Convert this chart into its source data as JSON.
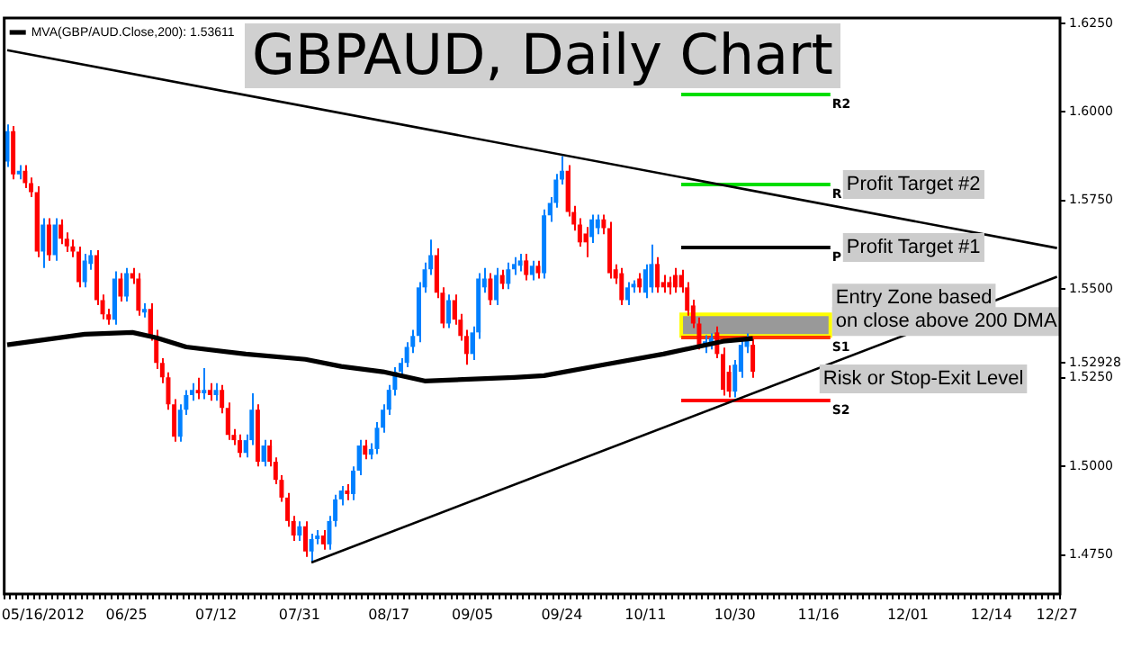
{
  "chart_data": {
    "type": "candlestick",
    "title": "GBPAUD, Daily Chart",
    "categories": [
      null,
      null,
      null,
      null,
      null,
      null,
      "05/16/2012",
      null,
      null,
      null,
      null,
      null,
      null,
      null,
      null,
      null,
      null,
      null,
      null,
      null,
      "06/25",
      null,
      null,
      null,
      null,
      null,
      null,
      null,
      null,
      null,
      null,
      null,
      null,
      null,
      null,
      "07/12",
      null,
      null,
      null,
      null,
      null,
      null,
      null,
      null,
      null,
      null,
      null,
      null,
      null,
      "07/31",
      null,
      null,
      null,
      null,
      null,
      null,
      null,
      null,
      null,
      null,
      null,
      null,
      null,
      null,
      "08/17",
      null,
      null,
      null,
      null,
      null,
      null,
      null,
      null,
      null,
      null,
      null,
      null,
      null,
      "09/05",
      null,
      null,
      null,
      null,
      null,
      null,
      null,
      null,
      null,
      null,
      null,
      null,
      null,
      null,
      "09/24",
      null,
      null,
      null,
      null,
      null,
      null,
      null,
      null,
      null,
      null,
      null,
      null,
      null,
      "10/11",
      null,
      null,
      null,
      null,
      null,
      null,
      null,
      null,
      null,
      null,
      null,
      null,
      null,
      null,
      "10/30",
      null,
      null,
      null,
      null,
      null,
      null,
      null,
      null,
      null,
      null,
      null,
      null,
      null,
      "11/16",
      null,
      null,
      null,
      null,
      null,
      null,
      null,
      null,
      null,
      null,
      null,
      null,
      null,
      null,
      "12/01",
      null,
      null,
      null,
      null,
      null,
      null,
      null,
      null,
      null,
      null,
      null,
      null,
      null,
      "12/14",
      null,
      null,
      null,
      null,
      null,
      null,
      null,
      null,
      null,
      null,
      "12/27"
    ],
    "ohlc": [
      [
        1.586,
        1.5965,
        1.5845,
        1.5946
      ],
      [
        1.5946,
        1.596,
        1.581,
        1.5824
      ],
      [
        1.5824,
        1.585,
        1.581,
        1.5834
      ],
      [
        1.5834,
        1.585,
        1.5785,
        1.5799
      ],
      [
        1.5799,
        1.5815,
        1.576,
        1.5774
      ],
      [
        1.5774,
        1.579,
        1.559,
        1.5606
      ],
      [
        1.5606,
        1.57,
        1.556,
        1.5682
      ],
      [
        1.5682,
        1.57,
        1.558,
        1.5596
      ],
      [
        1.5596,
        1.57,
        1.558,
        1.5682
      ],
      [
        1.5682,
        1.5697,
        1.5627,
        1.5642
      ],
      [
        1.5642,
        1.566,
        1.5605,
        1.5621
      ],
      [
        1.5621,
        1.564,
        1.559,
        1.5606
      ],
      [
        1.5606,
        1.562,
        1.5505,
        1.552
      ],
      [
        1.552,
        1.56,
        1.5505,
        1.5581
      ],
      [
        1.5571,
        1.561,
        1.5555,
        1.5596
      ],
      [
        1.5596,
        1.561,
        1.5455,
        1.5469
      ],
      [
        1.5469,
        1.5485,
        1.5415,
        1.5429
      ],
      [
        1.5429,
        1.5445,
        1.54,
        1.5414
      ],
      [
        1.5414,
        1.555,
        1.54,
        1.553
      ],
      [
        1.553,
        1.5545,
        1.5465,
        1.5479
      ],
      [
        1.5479,
        1.556,
        1.5465,
        1.5545
      ],
      [
        1.5545,
        1.556,
        1.5515,
        1.553
      ],
      [
        1.553,
        1.5545,
        1.5425,
        1.5439
      ],
      [
        1.5434,
        1.546,
        1.542,
        1.5444
      ],
      [
        1.5444,
        1.546,
        1.5355,
        1.5368
      ],
      [
        1.5368,
        1.5385,
        1.5275,
        1.5292
      ],
      [
        1.5292,
        1.5305,
        1.5235,
        1.5251
      ],
      [
        1.5251,
        1.5265,
        1.516,
        1.5175
      ],
      [
        1.5175,
        1.519,
        1.507,
        1.5084
      ],
      [
        1.5084,
        1.5175,
        1.507,
        1.516
      ],
      [
        1.516,
        1.5215,
        1.5145,
        1.5201
      ],
      [
        1.5201,
        1.5235,
        1.5185,
        1.5216
      ],
      [
        1.5216,
        1.525,
        1.519,
        1.5206
      ],
      [
        1.5206,
        1.5277,
        1.519,
        1.5216
      ],
      [
        1.5216,
        1.5235,
        1.5185,
        1.5201
      ],
      [
        1.5201,
        1.5235,
        1.5185,
        1.5216
      ],
      [
        1.5216,
        1.523,
        1.515,
        1.5165
      ],
      [
        1.5165,
        1.518,
        1.5075,
        1.5089
      ],
      [
        1.5089,
        1.5105,
        1.506,
        1.5074
      ],
      [
        1.5074,
        1.509,
        1.5025,
        1.5038
      ],
      [
        1.5038,
        1.509,
        1.5025,
        1.5074
      ],
      [
        1.5074,
        1.5206,
        1.506,
        1.516
      ],
      [
        1.516,
        1.5175,
        1.5,
        1.5013
      ],
      [
        1.5013,
        1.5075,
        1.5,
        1.5059
      ],
      [
        1.5059,
        1.5075,
        1.5,
        1.5013
      ],
      [
        1.5013,
        1.5025,
        1.495,
        1.4962
      ],
      [
        1.4962,
        1.4975,
        1.49,
        1.4912
      ],
      [
        1.4912,
        1.4925,
        1.483,
        1.4846
      ],
      [
        1.4846,
        1.486,
        1.479,
        1.4805
      ],
      [
        1.4805,
        1.4845,
        1.479,
        1.4831
      ],
      [
        1.4831,
        1.4845,
        1.4745,
        1.476
      ],
      [
        1.476,
        1.481,
        1.4729,
        1.4795
      ],
      [
        1.4795,
        1.482,
        1.478,
        1.4805
      ],
      [
        1.4805,
        1.482,
        1.4765,
        1.478
      ],
      [
        1.478,
        1.486,
        1.4765,
        1.4846
      ],
      [
        1.4846,
        1.492,
        1.483,
        1.4907
      ],
      [
        1.4907,
        1.4945,
        1.489,
        1.4932
      ],
      [
        1.4932,
        1.495,
        1.4905,
        1.4922
      ],
      [
        1.4922,
        1.5,
        1.4905,
        1.4988
      ],
      [
        1.4988,
        1.5075,
        1.4975,
        1.5059
      ],
      [
        1.5059,
        1.5075,
        1.502,
        1.5033
      ],
      [
        1.5033,
        1.5065,
        1.502,
        1.5049
      ],
      [
        1.5049,
        1.5125,
        1.5035,
        1.5109
      ],
      [
        1.5109,
        1.5175,
        1.5095,
        1.516
      ],
      [
        1.516,
        1.523,
        1.5145,
        1.5216
      ],
      [
        1.5216,
        1.528,
        1.52,
        1.5267
      ],
      [
        1.5267,
        1.5305,
        1.525,
        1.5292
      ],
      [
        1.5292,
        1.535,
        1.528,
        1.5337
      ],
      [
        1.5337,
        1.5385,
        1.532,
        1.5368
      ],
      [
        1.5368,
        1.552,
        1.535,
        1.5505
      ],
      [
        1.5505,
        1.5575,
        1.549,
        1.5556
      ],
      [
        1.5556,
        1.564,
        1.554,
        1.5596
      ],
      [
        1.5596,
        1.5615,
        1.5475,
        1.549
      ],
      [
        1.549,
        1.5505,
        1.539,
        1.5403
      ],
      [
        1.5403,
        1.5485,
        1.539,
        1.5469
      ],
      [
        1.5469,
        1.5485,
        1.54,
        1.5414
      ],
      [
        1.5414,
        1.543,
        1.5355,
        1.5368
      ],
      [
        1.5368,
        1.5385,
        1.5287,
        1.5317
      ],
      [
        1.5317,
        1.5395,
        1.53,
        1.5378
      ],
      [
        1.5378,
        1.5545,
        1.536,
        1.553
      ],
      [
        1.5505,
        1.556,
        1.549,
        1.553
      ],
      [
        1.553,
        1.5545,
        1.5455,
        1.5469
      ],
      [
        1.5469,
        1.556,
        1.5455,
        1.554
      ],
      [
        1.554,
        1.5555,
        1.55,
        1.5515
      ],
      [
        1.5515,
        1.5575,
        1.55,
        1.5556
      ],
      [
        1.5556,
        1.559,
        1.554,
        1.5571
      ],
      [
        1.5566,
        1.56,
        1.555,
        1.5581
      ],
      [
        1.5581,
        1.56,
        1.5525,
        1.554
      ],
      [
        1.554,
        1.558,
        1.5525,
        1.5566
      ],
      [
        1.5566,
        1.558,
        1.553,
        1.5545
      ],
      [
        1.5545,
        1.5725,
        1.553,
        1.5708
      ],
      [
        1.5708,
        1.576,
        1.569,
        1.5743
      ],
      [
        1.5743,
        1.5825,
        1.573,
        1.5809
      ],
      [
        1.5809,
        1.5875,
        1.5795,
        1.5834
      ],
      [
        1.5834,
        1.585,
        1.5705,
        1.5718
      ],
      [
        1.5718,
        1.5735,
        1.5665,
        1.5682
      ],
      [
        1.5682,
        1.57,
        1.562,
        1.5632
      ],
      [
        1.5657,
        1.5675,
        1.559,
        1.5632
      ],
      [
        1.5647,
        1.571,
        1.563,
        1.5697
      ],
      [
        1.5672,
        1.571,
        1.5655,
        1.5697
      ],
      [
        1.5697,
        1.571,
        1.5655,
        1.5672
      ],
      [
        1.5672,
        1.569,
        1.553,
        1.5545
      ],
      [
        1.5556,
        1.557,
        1.5515,
        1.553
      ],
      [
        1.5545,
        1.556,
        1.5455,
        1.5469
      ],
      [
        1.5469,
        1.552,
        1.5455,
        1.5505
      ],
      [
        1.5505,
        1.5525,
        1.549,
        1.5515
      ],
      [
        1.553,
        1.5545,
        1.549,
        1.5505
      ],
      [
        1.549,
        1.557,
        1.5475,
        1.5556
      ],
      [
        1.5505,
        1.5626,
        1.549,
        1.5571
      ],
      [
        1.5571,
        1.559,
        1.549,
        1.5505
      ],
      [
        1.552,
        1.554,
        1.549,
        1.5505
      ],
      [
        1.552,
        1.5535,
        1.5485,
        1.5505
      ],
      [
        1.554,
        1.556,
        1.549,
        1.5505
      ],
      [
        1.554,
        1.5555,
        1.549,
        1.5505
      ],
      [
        1.5505,
        1.552,
        1.5425,
        1.5439
      ],
      [
        1.5454,
        1.547,
        1.539,
        1.5403
      ],
      [
        1.5403,
        1.542,
        1.533,
        1.5343
      ],
      [
        1.5337,
        1.537,
        1.532,
        1.5353
      ],
      [
        1.5343,
        1.5375,
        1.533,
        1.5363
      ],
      [
        1.5378,
        1.5395,
        1.5305,
        1.5317
      ],
      [
        1.5317,
        1.5335,
        1.52,
        1.5216
      ],
      [
        1.5267,
        1.5285,
        1.5195,
        1.5211
      ],
      [
        1.5211,
        1.53,
        1.5195,
        1.5287
      ],
      [
        1.5267,
        1.536,
        1.525,
        1.5343
      ],
      [
        1.5337,
        1.5375,
        1.532,
        1.5363
      ],
      [
        1.5343,
        1.536,
        1.525,
        1.5267
      ],
      null,
      null,
      null,
      null,
      null,
      null,
      null,
      null,
      null,
      null,
      null,
      null,
      null,
      null,
      null,
      null,
      null,
      null,
      null,
      null,
      null,
      null,
      null,
      null,
      null,
      null,
      null,
      null,
      null,
      null,
      null,
      null,
      null,
      null,
      null,
      null,
      null,
      null,
      null,
      null,
      null,
      null,
      null,
      null,
      null,
      null,
      null,
      null,
      null,
      null,
      null
    ],
    "colors": [
      "#0080ff",
      "#ff0000",
      "#0080ff",
      "#ff0000",
      "#ff0000",
      "#ff0000",
      "#0080ff",
      "#ff0000",
      "#0080ff",
      "#ff0000",
      "#ff0000",
      "#ff0000",
      "#ff0000",
      "#0080ff",
      "#0080ff",
      "#ff0000",
      "#ff0000",
      "#ff0000",
      "#0080ff",
      "#ff0000",
      "#0080ff",
      "#ff0000",
      "#ff0000",
      "#0080ff",
      "#ff0000",
      "#ff0000",
      "#ff0000",
      "#ff0000",
      "#ff0000",
      "#0080ff",
      "#0080ff",
      "#0080ff",
      "#ff0000",
      "#0080ff",
      "#ff0000",
      "#0080ff",
      "#ff0000",
      "#ff0000",
      "#ff0000",
      "#ff0000",
      "#0080ff",
      "#0080ff",
      "#ff0000",
      "#0080ff",
      "#ff0000",
      "#ff0000",
      "#ff0000",
      "#ff0000",
      "#ff0000",
      "#0080ff",
      "#ff0000",
      "#0080ff",
      "#0080ff",
      "#ff0000",
      "#0080ff",
      "#0080ff",
      "#0080ff",
      "#ff0000",
      "#0080ff",
      "#0080ff",
      "#ff0000",
      "#0080ff",
      "#0080ff",
      "#0080ff",
      "#0080ff",
      "#0080ff",
      "#0080ff",
      "#0080ff",
      "#0080ff",
      "#0080ff",
      "#0080ff",
      "#0080ff",
      "#ff0000",
      "#ff0000",
      "#0080ff",
      "#ff0000",
      "#ff0000",
      "#ff0000",
      "#0080ff",
      "#0080ff",
      "#0080ff",
      "#ff0000",
      "#0080ff",
      "#ff0000",
      "#0080ff",
      "#0080ff",
      "#0080ff",
      "#ff0000",
      "#0080ff",
      "#ff0000",
      "#0080ff",
      "#0080ff",
      "#0080ff",
      "#0080ff",
      "#ff0000",
      "#ff0000",
      "#ff0000",
      "#ff0000",
      "#0080ff",
      "#0080ff",
      "#ff0000",
      "#ff0000",
      "#ff0000",
      "#ff0000",
      "#0080ff",
      "#0080ff",
      "#ff0000",
      "#0080ff",
      "#0080ff",
      "#ff0000",
      "#ff0000",
      "#ff0000",
      "#ff0000",
      "#ff0000",
      "#ff0000",
      "#ff0000",
      "#ff0000",
      "#0080ff",
      "#0080ff",
      "#ff0000",
      "#ff0000",
      "#ff0000",
      "#0080ff",
      "#0080ff",
      "#0080ff",
      "#ff0000",
      null,
      null,
      null,
      null,
      null,
      null,
      null,
      null,
      null,
      null,
      null,
      null,
      null,
      null,
      null,
      null,
      null,
      null,
      null,
      null,
      null,
      null,
      null,
      null,
      null,
      null,
      null,
      null,
      null,
      null,
      null,
      null,
      null,
      null,
      null,
      null,
      null,
      null,
      null,
      null,
      null,
      null,
      null,
      null,
      null,
      null,
      null,
      null,
      null,
      null,
      null
    ],
    "series": [
      {
        "type": "line",
        "name": "MVA(GBP/AUD.Close,200): 1.53611",
        "color": "#000000",
        "values": [
          1.5343,
          null,
          null,
          null,
          null,
          null,
          null,
          null,
          null,
          null,
          null,
          null,
          null,
          1.5373,
          null,
          null,
          null,
          null,
          null,
          null,
          null,
          1.5378,
          null,
          null,
          null,
          1.5363,
          null,
          null,
          null,
          null,
          1.5337,
          null,
          null,
          null,
          null,
          null,
          null,
          null,
          null,
          null,
          1.5317,
          null,
          null,
          null,
          null,
          null,
          null,
          null,
          null,
          null,
          1.5302,
          null,
          null,
          null,
          null,
          null,
          1.5282,
          null,
          null,
          null,
          null,
          null,
          null,
          1.5267,
          null,
          null,
          null,
          null,
          null,
          null,
          1.5241,
          null,
          null,
          null,
          null,
          null,
          null,
          null,
          null,
          null,
          null,
          null,
          null,
          null,
          null,
          1.5251,
          null,
          null,
          null,
          null,
          1.5256,
          null,
          null,
          null,
          null,
          null,
          null,
          null,
          null,
          null,
          1.5287,
          null,
          null,
          null,
          null,
          null,
          null,
          null,
          null,
          null,
          1.5317,
          null,
          null,
          null,
          null,
          null,
          null,
          null,
          null,
          null,
          1.5353,
          null,
          null,
          null,
          null,
          1.5361,
          null,
          null,
          null,
          null,
          null,
          null,
          null,
          null,
          null,
          null,
          null,
          null,
          null,
          null,
          null,
          null,
          null,
          null,
          null,
          null,
          null,
          null,
          null,
          null,
          null,
          null,
          null,
          null,
          null,
          null,
          null,
          null,
          null,
          null,
          null,
          null,
          null,
          null,
          null,
          null,
          null,
          null,
          null,
          null,
          null,
          null,
          null,
          null,
          null,
          null,
          null
        ]
      },
      {
        "type": "line",
        "color": "#000000",
        "values": [
          1.6174,
          null,
          null,
          null,
          null,
          null,
          null,
          null,
          null,
          null,
          null,
          null,
          null,
          null,
          null,
          null,
          null,
          null,
          null,
          null,
          null,
          null,
          null,
          null,
          null,
          null,
          null,
          null,
          null,
          null,
          null,
          null,
          null,
          null,
          null,
          null,
          null,
          null,
          null,
          null,
          null,
          null,
          null,
          null,
          null,
          null,
          null,
          null,
          null,
          null,
          null,
          null,
          null,
          null,
          null,
          null,
          null,
          null,
          null,
          null,
          null,
          null,
          null,
          null,
          null,
          null,
          null,
          null,
          null,
          null,
          null,
          null,
          null,
          null,
          null,
          null,
          null,
          null,
          null,
          null,
          null,
          null,
          null,
          null,
          null,
          null,
          null,
          null,
          null,
          null,
          null,
          null,
          null,
          null,
          null,
          null,
          null,
          null,
          null,
          null,
          null,
          null,
          null,
          null,
          null,
          null,
          null,
          null,
          null,
          null,
          null,
          null,
          null,
          null,
          null,
          null,
          null,
          null,
          null,
          null,
          null,
          null,
          null,
          null,
          null,
          null,
          null,
          null,
          null,
          null,
          null,
          null,
          null,
          null,
          null,
          null,
          null,
          null,
          null,
          null,
          null,
          null,
          null,
          null,
          null,
          null,
          null,
          null,
          null,
          null,
          null,
          null,
          null,
          null,
          null,
          null,
          null,
          null,
          null,
          null,
          null,
          null,
          null,
          null,
          null,
          null,
          null,
          null,
          null,
          null,
          null,
          null,
          null,
          null,
          null,
          null,
          1.5616
        ]
      },
      {
        "type": "line",
        "color": "#000000",
        "values": [
          null,
          null,
          null,
          null,
          null,
          null,
          null,
          null,
          null,
          null,
          null,
          null,
          null,
          null,
          null,
          null,
          null,
          null,
          null,
          null,
          null,
          null,
          null,
          null,
          null,
          null,
          null,
          null,
          null,
          null,
          null,
          null,
          null,
          null,
          null,
          null,
          null,
          null,
          null,
          null,
          null,
          null,
          null,
          null,
          null,
          null,
          null,
          null,
          null,
          null,
          null,
          1.4729,
          null,
          null,
          null,
          null,
          null,
          null,
          null,
          null,
          null,
          null,
          null,
          null,
          null,
          null,
          null,
          null,
          null,
          null,
          null,
          null,
          null,
          null,
          null,
          null,
          null,
          null,
          null,
          null,
          null,
          null,
          null,
          null,
          null,
          null,
          null,
          null,
          null,
          null,
          null,
          null,
          null,
          null,
          null,
          null,
          null,
          null,
          null,
          null,
          null,
          null,
          null,
          null,
          null,
          null,
          null,
          null,
          null,
          null,
          null,
          null,
          null,
          null,
          null,
          null,
          null,
          null,
          null,
          null,
          null,
          null,
          null,
          null,
          null,
          null,
          null,
          null,
          null,
          null,
          null,
          null,
          null,
          null,
          null,
          null,
          null,
          null,
          null,
          null,
          null,
          null,
          null,
          null,
          null,
          null,
          null,
          null,
          null,
          null,
          null,
          null,
          null,
          null,
          null,
          null,
          null,
          null,
          null,
          null,
          null,
          null,
          null,
          null,
          null,
          null,
          null,
          null,
          null,
          null,
          null,
          null,
          null,
          null,
          null,
          null,
          1.5535
        ]
      }
    ],
    "ylim": [
      1.464,
      1.6265
    ],
    "yticks": [
      {
        "value": 1.475,
        "label": "1.4750"
      },
      {
        "value": 1.5,
        "label": "1.5000"
      },
      {
        "value": 1.525,
        "label": "1.5250"
      },
      {
        "value": 1.52928,
        "label": "1.52928"
      },
      {
        "value": 1.55,
        "label": "1.5500"
      },
      {
        "value": 1.575,
        "label": "1.5750"
      },
      {
        "value": 1.6,
        "label": "1.6000"
      },
      {
        "value": 1.625,
        "label": "1.6250"
      }
    ],
    "ref_lines": [
      {
        "axis": "y",
        "value": 1.6052,
        "label": "R2",
        "color": "#00dd00"
      },
      {
        "axis": "y",
        "value": 1.5799,
        "label": "R",
        "color": "#00dd00"
      },
      {
        "axis": "y",
        "value": 1.5621,
        "label": "P",
        "color": "#000000"
      },
      {
        "axis": "y",
        "value": 1.5368,
        "label": "S1",
        "color": "#ff3300"
      },
      {
        "axis": "y",
        "value": 1.519,
        "label": "S2",
        "color": "#ff0000"
      }
    ],
    "bands": [
      {
        "axis": "y",
        "from": 1.5368,
        "to": 1.5429,
        "color": "#808080"
      }
    ],
    "annotations": [
      "Profit Target #2",
      "Profit Target #1",
      "Entry Zone based",
      "on close above 200 DMA",
      "Risk or Stop-Exit Level"
    ],
    "legend": "top left"
  }
}
